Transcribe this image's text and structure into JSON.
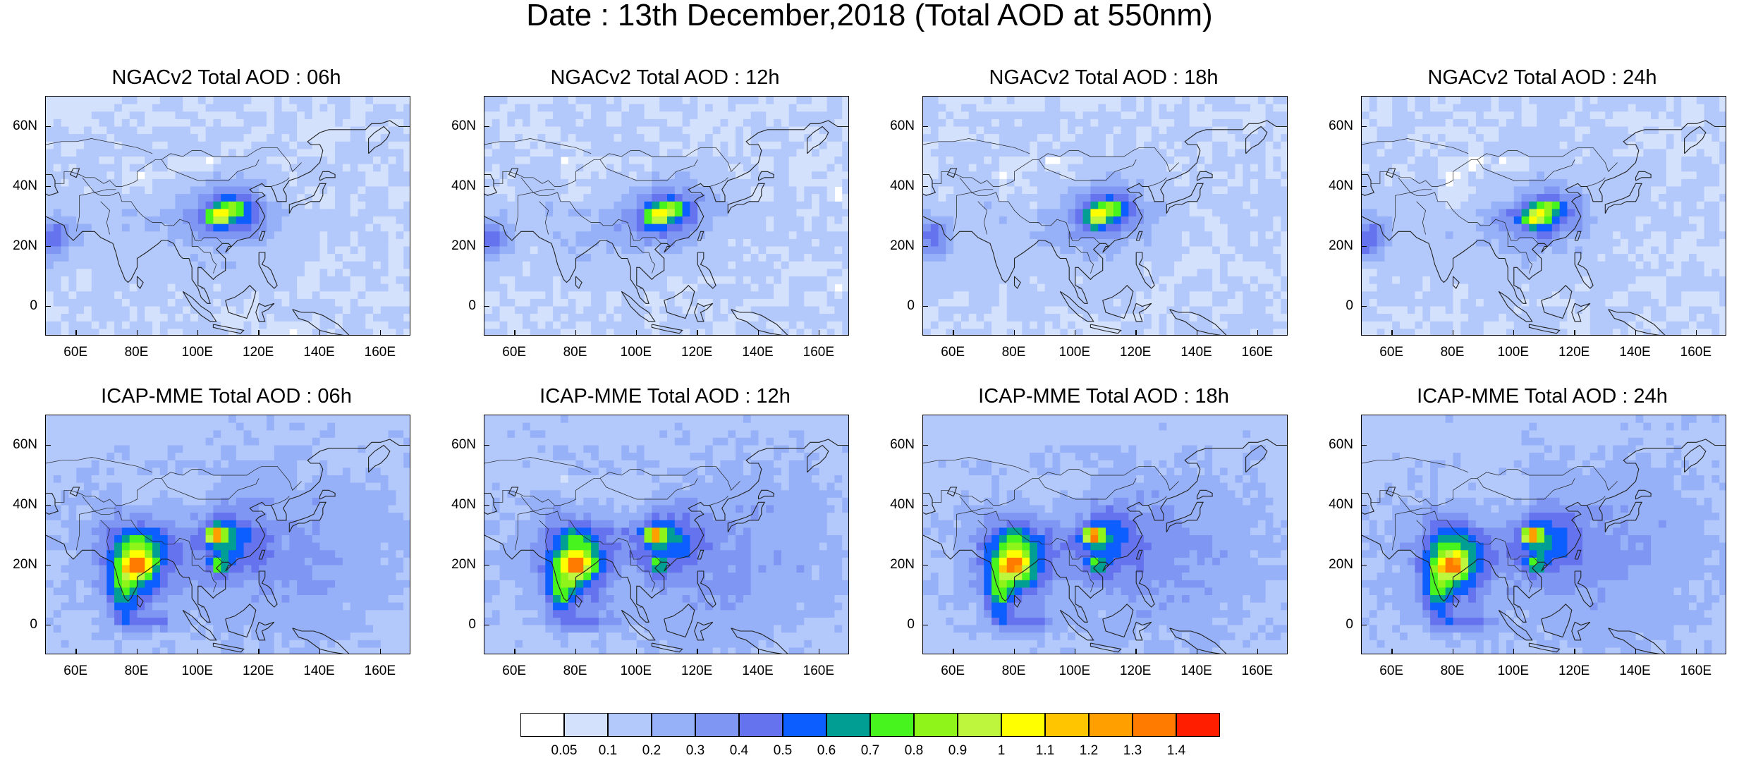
{
  "title": "Date : 13th December,2018 (Total AOD at 550nm)",
  "panels": [
    {
      "label": "NGACv2 Total AOD : 06h",
      "model": "ngac",
      "hour": "06h"
    },
    {
      "label": "NGACv2 Total AOD : 12h",
      "model": "ngac",
      "hour": "12h"
    },
    {
      "label": "NGACv2 Total AOD : 18h",
      "model": "ngac",
      "hour": "18h"
    },
    {
      "label": "NGACv2 Total AOD : 24h",
      "model": "ngac",
      "hour": "24h"
    },
    {
      "label": "ICAP-MME Total AOD : 06h",
      "model": "icap",
      "hour": "06h"
    },
    {
      "label": "ICAP-MME Total AOD : 12h",
      "model": "icap",
      "hour": "12h"
    },
    {
      "label": "ICAP-MME Total AOD : 18h",
      "model": "icap",
      "hour": "18h"
    },
    {
      "label": "ICAP-MME Total AOD : 24h",
      "model": "icap",
      "hour": "24h"
    }
  ],
  "axes": {
    "lon_range": [
      50,
      170
    ],
    "lat_range": [
      -10,
      70
    ],
    "x_ticks": [
      {
        "value": 60,
        "label": "60E"
      },
      {
        "value": 80,
        "label": "80E"
      },
      {
        "value": 100,
        "label": "100E"
      },
      {
        "value": 120,
        "label": "120E"
      },
      {
        "value": 140,
        "label": "140E"
      },
      {
        "value": 160,
        "label": "160E"
      }
    ],
    "y_ticks": [
      {
        "value": 60,
        "label": "60N"
      },
      {
        "value": 40,
        "label": "40N"
      },
      {
        "value": 20,
        "label": "20N"
      },
      {
        "value": 0,
        "label": "0"
      }
    ]
  },
  "colorbar": {
    "labels": [
      "0.05",
      "0.1",
      "0.2",
      "0.3",
      "0.4",
      "0.5",
      "0.6",
      "0.7",
      "0.8",
      "0.9",
      "1",
      "1.1",
      "1.2",
      "1.3",
      "1.4"
    ],
    "colors": [
      "#ffffff",
      "#d4e1fc",
      "#b3c8fb",
      "#97b1f8",
      "#7f97f3",
      "#6673ee",
      "#0d5eff",
      "#009e93",
      "#48f41e",
      "#8ef41a",
      "#bef63d",
      "#ffff00",
      "#ffc600",
      "#ff9f00",
      "#ff7b00",
      "#ff1e00"
    ]
  },
  "aod_features": {
    "ngac": [
      {
        "lon": 110,
        "lat": 31,
        "sx": 9,
        "sy": 6,
        "amp": 0.4
      },
      {
        "lon": 107,
        "lat": 30,
        "sx": 2.5,
        "sy": 2.2,
        "amp": 0.55
      },
      {
        "lon": 112,
        "lat": 33,
        "sx": 2.5,
        "sy": 2,
        "amp": 0.3
      },
      {
        "lon": 52,
        "lat": 23,
        "sx": 5,
        "sy": 5,
        "amp": 0.35
      },
      {
        "lon": 95,
        "lat": 28,
        "sx": 25,
        "sy": 14,
        "amp": 0.1
      }
    ],
    "icap": [
      {
        "lon": 80,
        "lat": 22,
        "sx": 7,
        "sy": 9,
        "amp": 0.6
      },
      {
        "lon": 80,
        "lat": 20,
        "sx": 3,
        "sy": 2.5,
        "amp": 0.6
      },
      {
        "lon": 75,
        "lat": 10,
        "sx": 3,
        "sy": 6,
        "amp": 0.35
      },
      {
        "lon": 83,
        "lat": 1,
        "sx": 7,
        "sy": 2,
        "amp": 0.25
      },
      {
        "lon": 110,
        "lat": 28,
        "sx": 8,
        "sy": 7,
        "amp": 0.3
      },
      {
        "lon": 106,
        "lat": 30,
        "sx": 2,
        "sy": 1.8,
        "amp": 0.9
      },
      {
        "lon": 107,
        "lat": 20,
        "sx": 2,
        "sy": 2,
        "amp": 0.35
      },
      {
        "lon": 105,
        "lat": 25,
        "sx": 40,
        "sy": 18,
        "amp": 0.12
      },
      {
        "lon": 135,
        "lat": 20,
        "sx": 20,
        "sy": 25,
        "amp": 0.08
      }
    ]
  }
}
